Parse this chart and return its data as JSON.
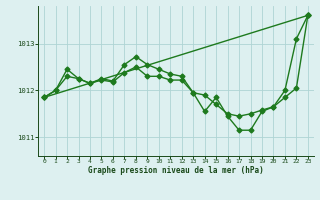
{
  "line1_x": [
    0,
    1,
    2,
    3,
    4,
    5,
    6,
    7,
    8,
    9,
    10,
    11,
    12,
    13,
    14,
    15,
    16,
    17,
    18,
    19,
    20,
    21,
    22,
    23
  ],
  "line1_y": [
    1011.85,
    1012.0,
    1012.45,
    1012.25,
    1012.15,
    1012.25,
    1012.2,
    1012.55,
    1012.72,
    1012.55,
    1012.45,
    1012.35,
    1012.3,
    1011.95,
    1011.55,
    1011.85,
    1011.45,
    1011.15,
    1011.15,
    1011.55,
    1011.65,
    1012.0,
    1013.1,
    1013.6
  ],
  "line2_x": [
    0,
    1,
    2,
    3,
    4,
    5,
    6,
    7,
    8,
    9,
    10,
    11,
    12,
    13,
    14,
    15,
    16,
    17,
    18,
    19,
    20,
    21,
    22,
    23
  ],
  "line2_y": [
    1011.85,
    1012.0,
    1012.3,
    1012.25,
    1012.15,
    1012.22,
    1012.18,
    1012.38,
    1012.5,
    1012.3,
    1012.3,
    1012.22,
    1012.22,
    1011.95,
    1011.9,
    1011.7,
    1011.5,
    1011.45,
    1011.5,
    1011.58,
    1011.65,
    1011.85,
    1012.05,
    1013.6
  ],
  "line3_x": [
    0,
    23
  ],
  "line3_y": [
    1011.85,
    1013.6
  ],
  "color": "#1e7a1e",
  "marker": "D",
  "markersize": 2.5,
  "linewidth": 1.0,
  "background_color": "#ddf0f0",
  "grid_color": "#aed4d4",
  "text_color": "#1a4a1a",
  "xlabel": "Graphe pression niveau de la mer (hPa)",
  "xlim": [
    -0.5,
    23.5
  ],
  "ylim": [
    1010.6,
    1013.8
  ],
  "yticks": [
    1011,
    1012,
    1013
  ],
  "xticks": [
    0,
    1,
    2,
    3,
    4,
    5,
    6,
    7,
    8,
    9,
    10,
    11,
    12,
    13,
    14,
    15,
    16,
    17,
    18,
    19,
    20,
    21,
    22,
    23
  ]
}
